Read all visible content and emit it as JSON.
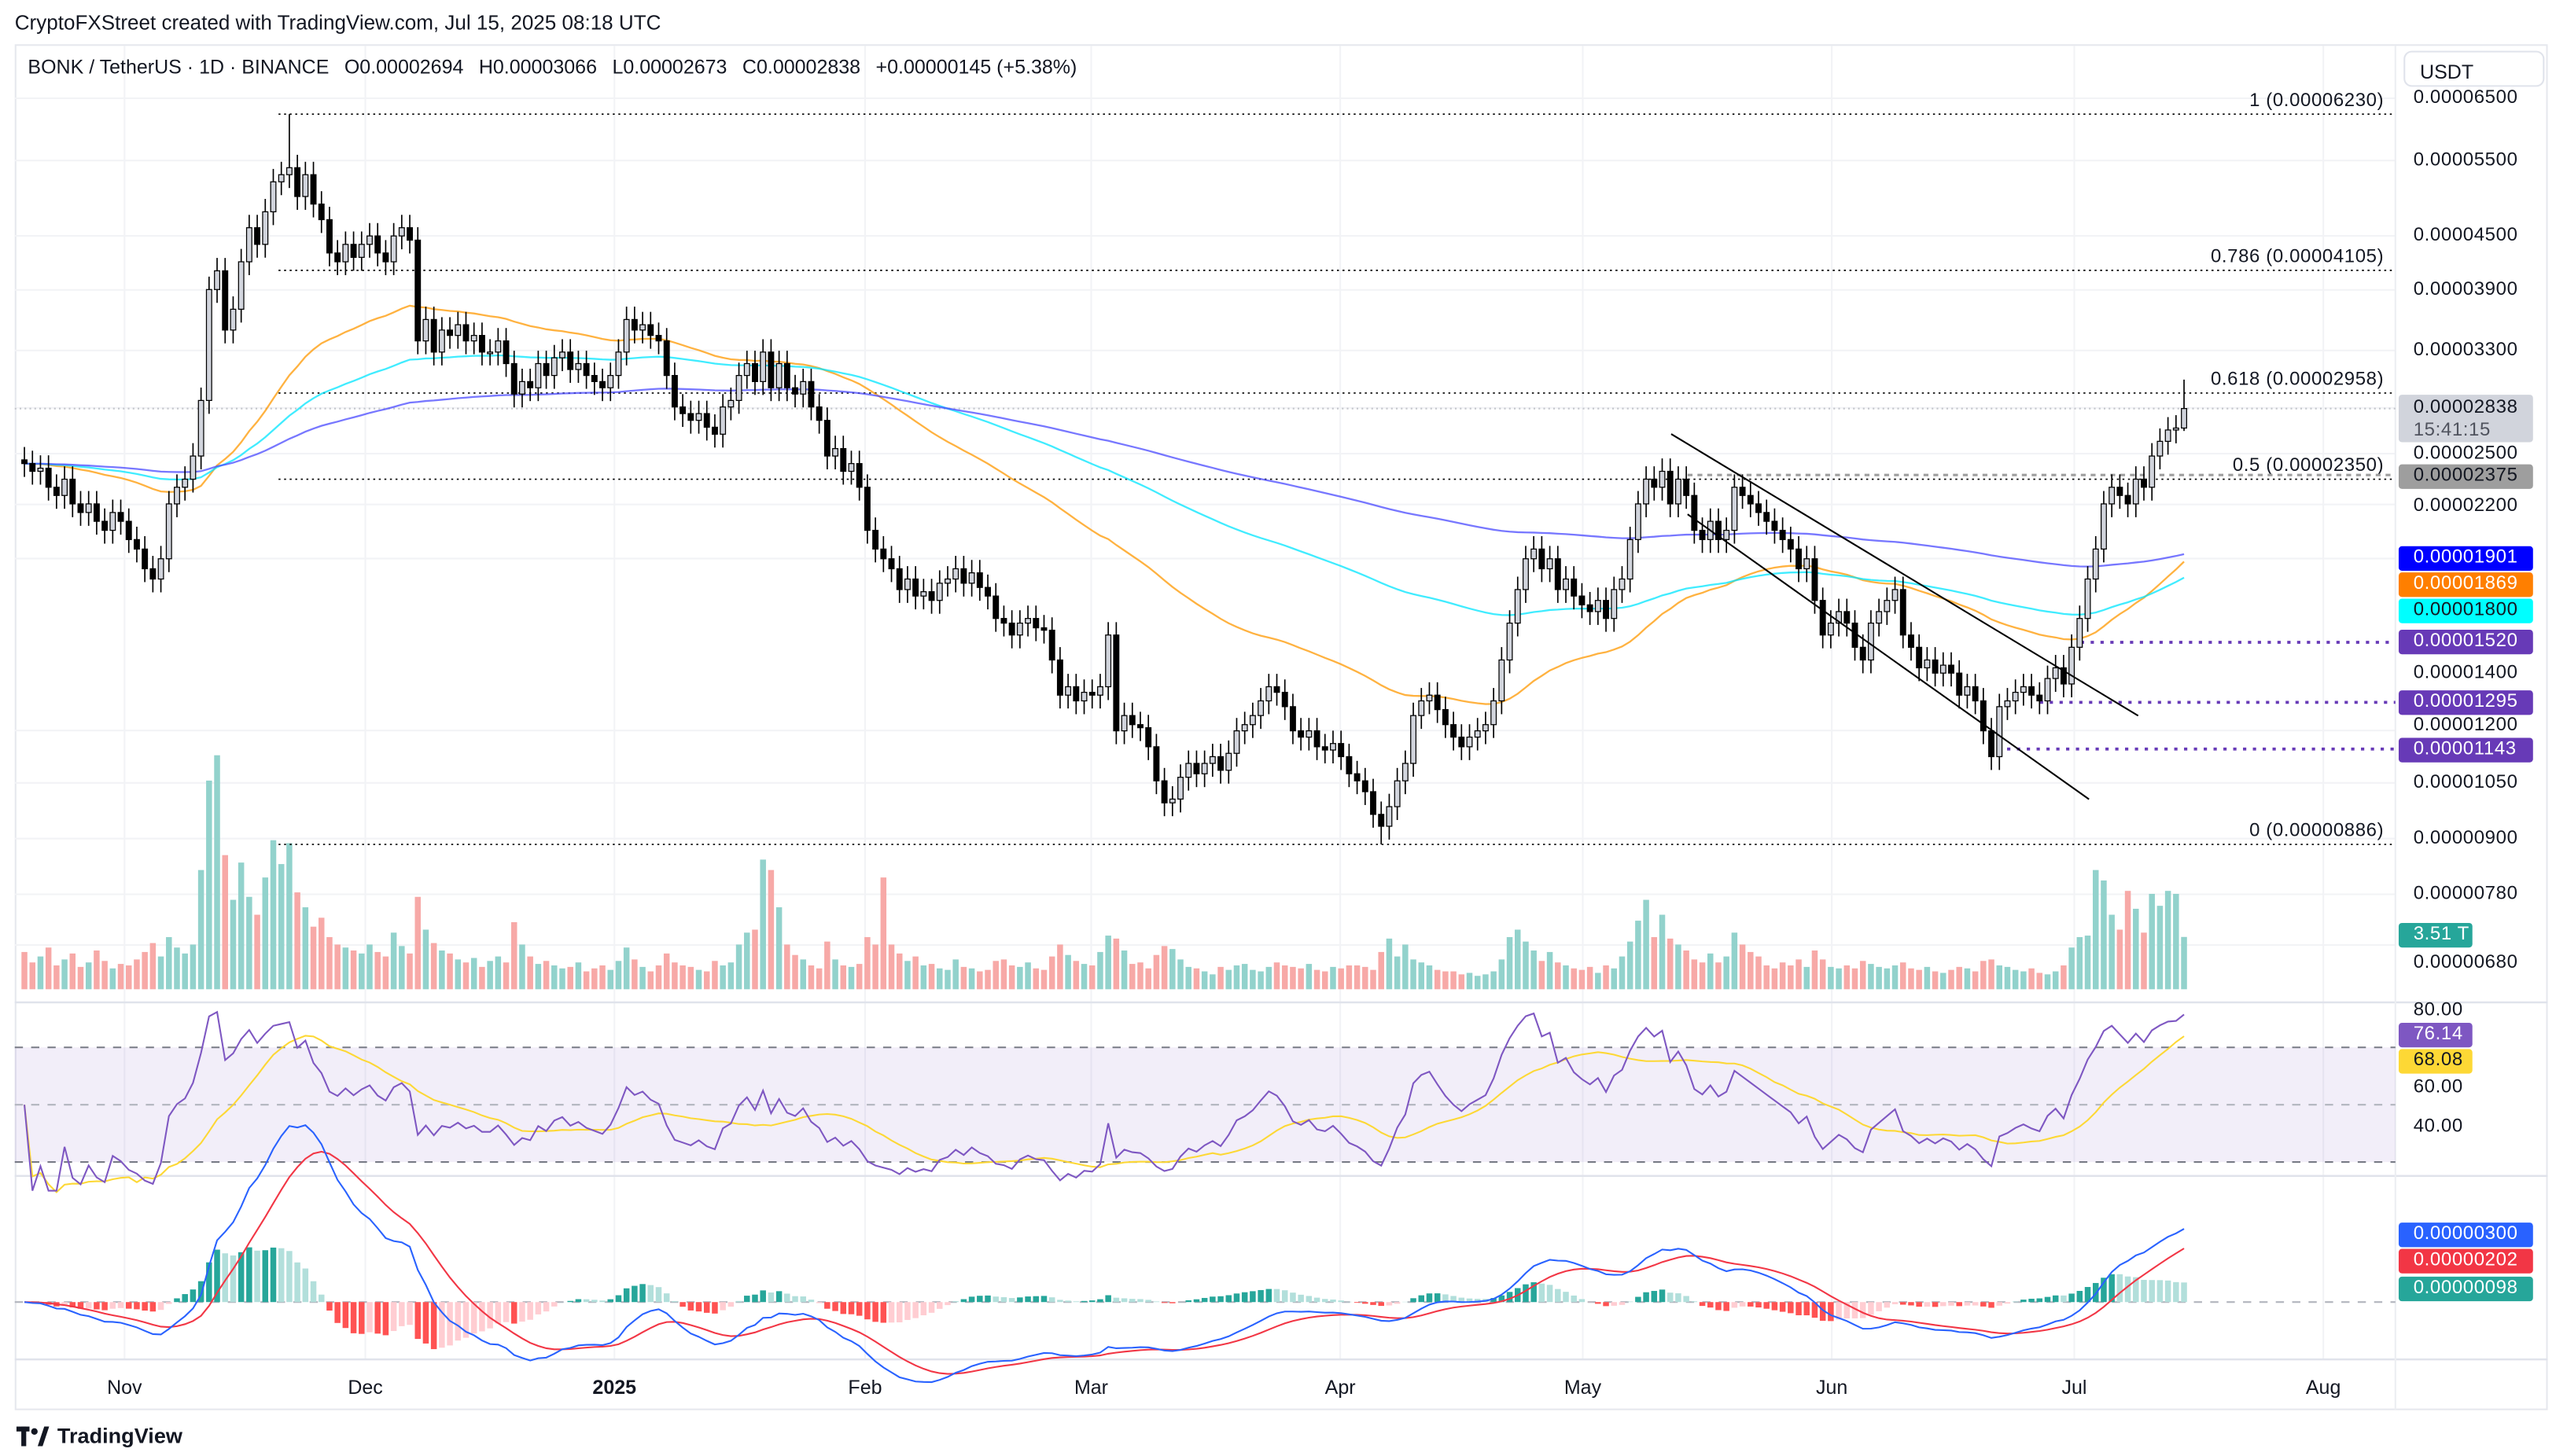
{
  "header": {
    "credit": "CryptoFXStreet created with TradingView.com, Jul 15, 2025 08:18 UTC"
  },
  "legend": {
    "symbol": "BONK / TetherUS · 1D · BINANCE",
    "open": "O0.00002694",
    "high": "H0.00003066",
    "low": "L0.00002673",
    "close": "C0.00002838",
    "change": "+0.00000145 (+5.38%)"
  },
  "currency_button": "USDT",
  "price_axis": {
    "scale": "log",
    "ticks": [
      "0.00006500",
      "0.00005500",
      "0.00004500",
      "0.00003900",
      "0.00003300",
      "0.00002500",
      "0.00002200",
      "0.00001400",
      "0.00001200",
      "0.00001050",
      "0.00000900",
      "0.00000780",
      "0.00000680"
    ]
  },
  "badges": {
    "last_price": "0.00002838",
    "countdown": "15:41:15",
    "prev_level": "0.00002375",
    "ema200": "0.00001901",
    "ema50": "0.00001869",
    "ema100": "0.00001800",
    "level1": "0.00001520",
    "level2": "0.00001295",
    "level3": "0.00001143",
    "volume": "3.51 T",
    "rsi": "76.14",
    "rsi_ma": "68.08",
    "macd": "0.00000300",
    "signal": "0.00000202",
    "histogram": "0.00000098"
  },
  "rsi_axis": {
    "ticks": [
      "80.00",
      "60.00",
      "40.00"
    ]
  },
  "time_axis": {
    "labels": [
      "Nov",
      "Dec",
      "2025",
      "Feb",
      "Mar",
      "Apr",
      "May",
      "Jun",
      "Jul",
      "Aug"
    ]
  },
  "footer": {
    "brand": "TradingView"
  },
  "colors": {
    "up_body": "#d1d4dc",
    "down_body": "#000000",
    "ema50": "#ff9800",
    "ema100": "#00e5ff",
    "ema200": "#4a4aff",
    "vol_up": "#92d2cc",
    "vol_down": "#f7a9a7",
    "rsi": "#7e57c2",
    "rsi_ma": "#fdd835",
    "macd": "#2962ff",
    "signal": "#f23645",
    "levels": "#673ab7"
  },
  "chart_data": {
    "type": "candlestick",
    "interval": "1D",
    "y_scale": "log",
    "fib_levels": [
      {
        "label": "1 (0.00006230)",
        "value": 6.23e-05
      },
      {
        "label": "0.786 (0.00004105)",
        "value": 4.105e-05
      },
      {
        "label": "0.618 (0.00002958)",
        "value": 2.958e-05
      },
      {
        "label": "0.5 (0.00002350)",
        "value": 2.35e-05
      },
      {
        "label": "0 (0.00000886)",
        "value": 8.86e-06
      }
    ],
    "horizontal_levels": [
      1.52e-05,
      1.295e-05,
      1.143e-05
    ],
    "moving_averages": [
      "EMA 50",
      "EMA 100",
      "EMA 200"
    ],
    "close": [
      2.45e-05,
      2.4e-05,
      2.42e-05,
      2.3e-05,
      2.25e-05,
      2.35e-05,
      2.2e-05,
      2.15e-05,
      2.2e-05,
      2.1e-05,
      2.05e-05,
      2.15e-05,
      2.1e-05,
      2e-05,
      1.95e-05,
      1.85e-05,
      1.8e-05,
      1.9e-05,
      2.2e-05,
      2.3e-05,
      2.35e-05,
      2.5e-05,
      2.9e-05,
      3.9e-05,
      4.1e-05,
      3.5e-05,
      3.7e-05,
      4.2e-05,
      4.6e-05,
      4.4e-05,
      4.8e-05,
      5.2e-05,
      5.3e-05,
      5.4e-05,
      5e-05,
      5.3e-05,
      4.9e-05,
      4.7e-05,
      4.3e-05,
      4.2e-05,
      4.4e-05,
      4.25e-05,
      4.4e-05,
      4.5e-05,
      4.3e-05,
      4.2e-05,
      4.5e-05,
      4.6e-05,
      4.45e-05,
      3.4e-05,
      3.6e-05,
      3.3e-05,
      3.5e-05,
      3.45e-05,
      3.55e-05,
      3.4e-05,
      3.45e-05,
      3.3e-05,
      3.3e-05,
      3.4e-05,
      3.2e-05,
      2.95e-05,
      3.05e-05,
      3e-05,
      3.2e-05,
      3.1e-05,
      3.25e-05,
      3.3e-05,
      3.15e-05,
      3.2e-05,
      3.1e-05,
      3.05e-05,
      3e-05,
      3.1e-05,
      3.3e-05,
      3.6e-05,
      3.5e-05,
      3.55e-05,
      3.45e-05,
      3.4e-05,
      3.1e-05,
      2.85e-05,
      2.8e-05,
      2.75e-05,
      2.8e-05,
      2.7e-05,
      2.65e-05,
      2.85e-05,
      2.9e-05,
      3.1e-05,
      3.2e-05,
      3.05e-05,
      3.3e-05,
      3e-05,
      3.2e-05,
      3e-05,
      2.95e-05,
      3.05e-05,
      2.85e-05,
      2.75e-05,
      2.5e-05,
      2.55e-05,
      2.4e-05,
      2.45e-05,
      2.3e-05,
      2.05e-05,
      1.95e-05,
      1.9e-05,
      1.85e-05,
      1.75e-05,
      1.8e-05,
      1.72e-05,
      1.74e-05,
      1.7e-05,
      1.78e-05,
      1.8e-05,
      1.85e-05,
      1.78e-05,
      1.83e-05,
      1.76e-05,
      1.72e-05,
      1.62e-05,
      1.6e-05,
      1.55e-05,
      1.6e-05,
      1.62e-05,
      1.58e-05,
      1.57e-05,
      1.45e-05,
      1.32e-05,
      1.35e-05,
      1.3e-05,
      1.33e-05,
      1.32e-05,
      1.35e-05,
      1.55e-05,
      1.2e-05,
      1.25e-05,
      1.22e-05,
      1.21e-05,
      1.15e-05,
      1.05e-05,
      9.9e-06,
      1e-05,
      1.06e-05,
      1.1e-05,
      1.07e-05,
      1.1e-05,
      1.12e-05,
      1.08e-05,
      1.13e-05,
      1.2e-05,
      1.22e-05,
      1.25e-05,
      1.3e-05,
      1.35e-05,
      1.33e-05,
      1.28e-05,
      1.2e-05,
      1.18e-05,
      1.2e-05,
      1.15e-05,
      1.14e-05,
      1.16e-05,
      1.12e-05,
      1.07e-05,
      1.05e-05,
      1.02e-05,
      9.6e-06,
      9.3e-06,
      9.8e-06,
      1.05e-05,
      1.1e-05,
      1.25e-05,
      1.3e-05,
      1.32e-05,
      1.27e-05,
      1.22e-05,
      1.18e-05,
      1.15e-05,
      1.18e-05,
      1.2e-05,
      1.22e-05,
      1.3e-05,
      1.45e-05,
      1.6e-05,
      1.75e-05,
      1.9e-05,
      1.95e-05,
      1.85e-05,
      1.9e-05,
      1.75e-05,
      1.8e-05,
      1.72e-05,
      1.68e-05,
      1.65e-05,
      1.7e-05,
      1.62e-05,
      1.75e-05,
      1.8e-05,
      2e-05,
      2.2e-05,
      2.35e-05,
      2.3e-05,
      2.4e-05,
      2.2e-05,
      2.35e-05,
      2.25e-05,
      2.05e-05,
      2e-05,
      2.1e-05,
      2e-05,
      2.05e-05,
      2.3e-05,
      2.25e-05,
      2.2e-05,
      2.15e-05,
      2.1e-05,
      2.05e-05,
      2e-05,
      1.95e-05,
      1.85e-05,
      1.9e-05,
      1.7e-05,
      1.55e-05,
      1.6e-05,
      1.65e-05,
      1.6e-05,
      1.5e-05,
      1.45e-05,
      1.6e-05,
      1.65e-05,
      1.7e-05,
      1.75e-05,
      1.55e-05,
      1.5e-05,
      1.42e-05,
      1.45e-05,
      1.4e-05,
      1.43e-05,
      1.4e-05,
      1.32e-05,
      1.35e-05,
      1.3e-05,
      1.2e-05,
      1.12e-05,
      1.28e-05,
      1.3e-05,
      1.33e-05,
      1.35e-05,
      1.32e-05,
      1.3e-05,
      1.38e-05,
      1.42e-05,
      1.36e-05,
      1.5e-05,
      1.62e-05,
      1.8e-05,
      1.95e-05,
      2.2e-05,
      2.3e-05,
      2.25e-05,
      2.2e-05,
      2.35e-05,
      2.3e-05,
      2.5e-05,
      2.6e-05,
      2.68e-05,
      2.694e-05,
      2.838e-05
    ],
    "volume_T": [
      2.5,
      1.8,
      2.2,
      2.8,
      1.6,
      2.0,
      2.4,
      1.5,
      1.8,
      2.6,
      1.9,
      1.4,
      1.7,
      1.6,
      2.0,
      2.5,
      3.1,
      2.2,
      3.5,
      2.8,
      2.4,
      3.0,
      8.0,
      14.0,
      15.7,
      9.0,
      6.0,
      8.5,
      6.2,
      5.0,
      7.5,
      10.0,
      8.4,
      9.8,
      6.5,
      5.5,
      4.2,
      4.8,
      3.5,
      3.0,
      2.8,
      2.6,
      2.4,
      3.0,
      2.5,
      2.2,
      3.8,
      2.9,
      2.4,
      6.2,
      4.0,
      3.1,
      2.6,
      2.4,
      2.0,
      1.8,
      2.1,
      1.5,
      1.9,
      2.2,
      1.8,
      4.5,
      3.0,
      2.2,
      1.7,
      1.9,
      1.6,
      1.4,
      1.5,
      1.8,
      1.2,
      1.4,
      1.6,
      1.3,
      1.9,
      2.8,
      2.0,
      1.5,
      1.2,
      1.6,
      2.4,
      1.8,
      1.6,
      1.5,
      1.3,
      1.2,
      1.9,
      1.6,
      1.8,
      3.0,
      3.8,
      4.0,
      8.7,
      8.0,
      5.5,
      3.0,
      2.3,
      2.0,
      1.6,
      1.4,
      3.2,
      2.0,
      1.6,
      1.5,
      1.7,
      3.5,
      3.0,
      7.5,
      3.0,
      2.4,
      1.9,
      2.2,
      1.6,
      1.7,
      1.4,
      1.3,
      2.0,
      1.5,
      1.4,
      1.2,
      1.3,
      1.9,
      2.0,
      1.6,
      1.5,
      1.8,
      1.4,
      1.3,
      2.2,
      3.0,
      2.3,
      1.9,
      1.7,
      1.6,
      2.5,
      3.6,
      3.4,
      2.6,
      1.7,
      1.8,
      1.4,
      2.3,
      2.9,
      2.7,
      2.0,
      1.5,
      1.4,
      1.2,
      1.0,
      1.5,
      1.3,
      1.6,
      1.7,
      1.3,
      1.2,
      1.5,
      1.8,
      1.6,
      1.5,
      1.4,
      1.7,
      1.3,
      1.2,
      1.5,
      1.4,
      1.6,
      1.6,
      1.5,
      1.3,
      2.5,
      3.4,
      2.2,
      3.0,
      2.0,
      1.8,
      1.6,
      1.3,
      1.2,
      1.2,
      1.0,
      1.1,
      0.9,
      1.0,
      1.2,
      2.0,
      3.5,
      4.0,
      3.2,
      2.6,
      1.9,
      2.5,
      1.8,
      1.6,
      1.4,
      1.3,
      1.5,
      1.1,
      1.6,
      1.4,
      2.2,
      3.2,
      4.6,
      6.0,
      3.5,
      5.0,
      3.4,
      3.0,
      2.6,
      2.0,
      1.8,
      2.4,
      1.8,
      2.2,
      3.8,
      3.0,
      2.5,
      2.2,
      1.6,
      1.4,
      1.8,
      1.6,
      2.0,
      1.5,
      2.6,
      2.0,
      1.5,
      1.4,
      1.6,
      1.4,
      1.9,
      1.7,
      1.5,
      1.4,
      1.6,
      1.8,
      1.4,
      1.3,
      1.5,
      1.2,
      1.1,
      1.3,
      1.5,
      1.4,
      1.2,
      1.9,
      2.0,
      1.6,
      1.5,
      1.3,
      1.2,
      1.4,
      1.1,
      1.0,
      1.2,
      1.6,
      2.8,
      3.5,
      3.6,
      8.0,
      7.3,
      5.0,
      4.0,
      6.6,
      5.4,
      3.8,
      6.4,
      5.6,
      6.6,
      6.4,
      3.51
    ],
    "last_candle": {
      "open": 2.694e-05,
      "high": 3.066e-05,
      "low": 2.673e-05,
      "close": 2.838e-05
    }
  }
}
